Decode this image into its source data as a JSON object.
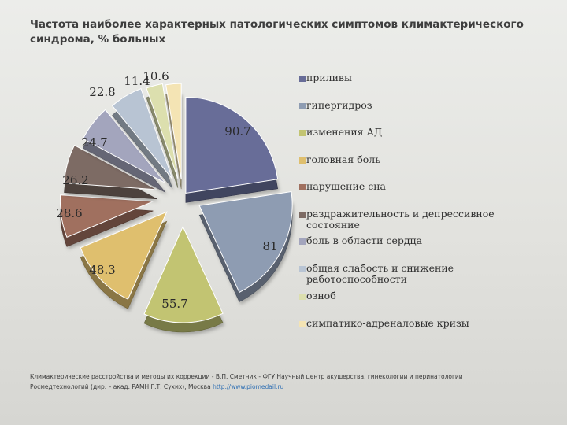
{
  "title": "Частота наиболее характерных патологических симптомов климактерического синдрома, % больных",
  "chart_data": {
    "type": "pie",
    "variant": "3d-exploded",
    "title": "Частота наиболее характерных патологических симптомов климактерического синдрома, % больных",
    "legend_position": "right",
    "slices": [
      {
        "label": "приливы",
        "value": 90.7,
        "display": "90.7",
        "color": "#686d98"
      },
      {
        "label": "гипергидроз",
        "value": 81,
        "display": "81",
        "color": "#8e9cb2"
      },
      {
        "label": "изменения АД",
        "value": 55.7,
        "display": "55.7",
        "color": "#c2c472"
      },
      {
        "label": "головная боль",
        "value": 48.3,
        "display": "48.3",
        "color": "#dfbf6e"
      },
      {
        "label": "нарушение сна",
        "value": 28.6,
        "display": "28.6",
        "color": "#a0705f"
      },
      {
        "label": "раздражительность и депрессивное состояние",
        "value": 26.2,
        "display": "26.2",
        "color": "#7d6b64"
      },
      {
        "label": "боль в области сердца",
        "value": 24.7,
        "display": "24.7",
        "color": "#a3a5bd"
      },
      {
        "label": "общая слабость и снижение работоспособности",
        "value": 22.8,
        "display": "22.8",
        "color": "#b8c4d3"
      },
      {
        "label": "озноб",
        "value": 11.4,
        "display": "11.4",
        "color": "#dcdfae"
      },
      {
        "label": "симпатико-адреналовые кризы",
        "value": 10.6,
        "display": "10.6",
        "color": "#f4e4b4"
      }
    ]
  },
  "footer": {
    "line1": "Климактерические расстройства и методы их коррекции - В.П. Сметник - ФГУ Научный центр акушерства, гинекологии и перинатологии",
    "line2": "Росмедтехнологий (дир. – акад. РАМН Г.Т. Сухих), Москва",
    "link": "http://www.piomedail.ru"
  }
}
